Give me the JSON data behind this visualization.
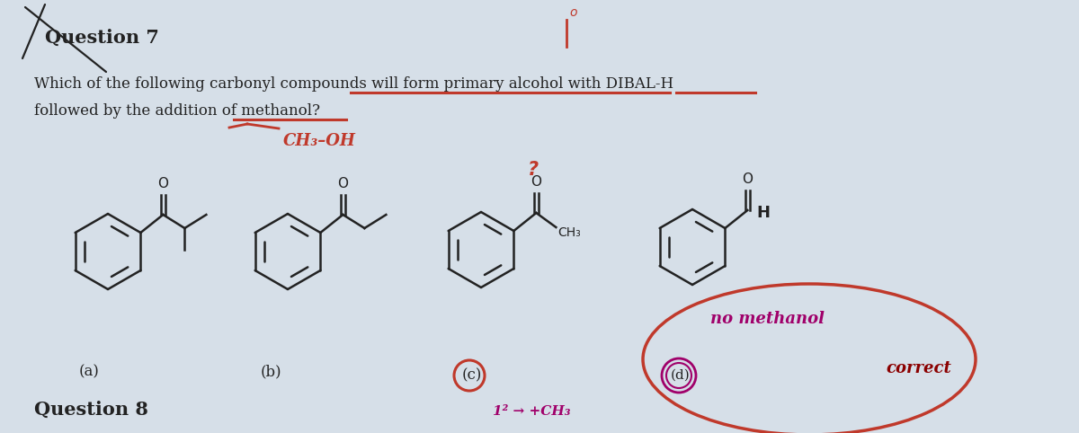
{
  "bg_color": "#d6dfe8",
  "title": "Question 7",
  "question_text_line1": "Which of the following carbonyl compounds will form primary alcohol with DIBAL-H",
  "question_text_line2": "followed by the addition of methanol?",
  "label_a": "(a)",
  "label_b": "(b)",
  "label_c": "(c)",
  "label_d": "(d)",
  "q8_text": "Question 8",
  "red_color": "#c0392b",
  "magenta_color": "#a0006a",
  "dark_red": "#8b0000",
  "black": "#1a1a1a",
  "pen_black": "#222222"
}
